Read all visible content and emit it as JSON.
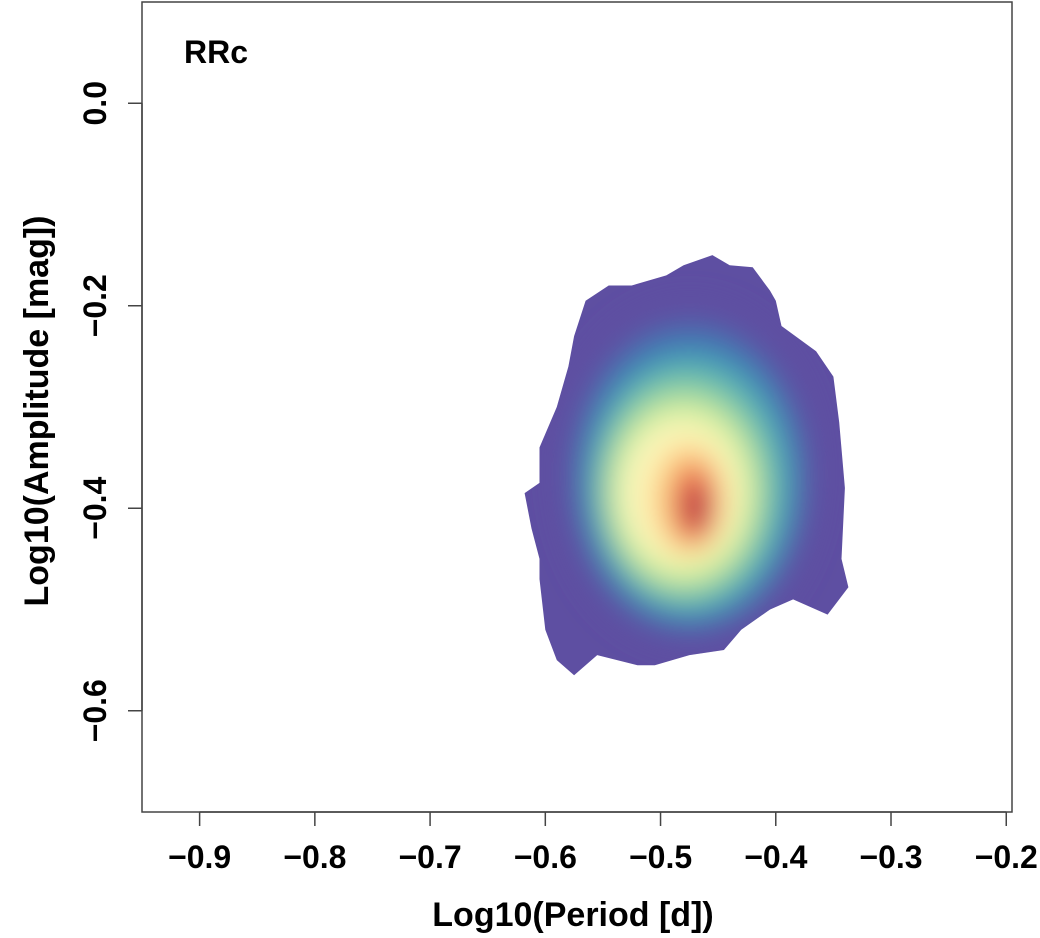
{
  "chart_data": {
    "type": "heatmap",
    "subtype": "2d-density",
    "title": "RRc",
    "xlabel": "Log10(Period [d])",
    "ylabel": "Log10(Amplitude [mag])",
    "xlim": [
      -0.95,
      -0.195
    ],
    "ylim": [
      -0.7,
      0.1
    ],
    "x_ticks": [
      -0.9,
      -0.8,
      -0.7,
      -0.6,
      -0.5,
      -0.4,
      -0.3,
      -0.2
    ],
    "x_tick_labels": [
      "−0.9",
      "−0.8",
      "−0.7",
      "−0.6",
      "−0.5",
      "−0.4",
      "−0.3",
      "−0.2"
    ],
    "y_ticks": [
      0.0,
      -0.2,
      -0.4,
      -0.6
    ],
    "y_tick_labels": [
      "0.0",
      "−0.2",
      "−0.4",
      "−0.6"
    ],
    "grid": false,
    "colormap": [
      "#5e4fa2",
      "#3288bd",
      "#66c2a5",
      "#abdda4",
      "#e6f598",
      "#ffffbf",
      "#fee08b",
      "#fdae61",
      "#f46d43",
      "#d53e4f",
      "#9e0142"
    ],
    "density_peak": {
      "x": -0.47,
      "y": -0.4
    },
    "density_outline": [
      [
        -0.575,
        -0.565
      ],
      [
        -0.555,
        -0.545
      ],
      [
        -0.52,
        -0.555
      ],
      [
        -0.505,
        -0.555
      ],
      [
        -0.475,
        -0.545
      ],
      [
        -0.445,
        -0.54
      ],
      [
        -0.43,
        -0.52
      ],
      [
        -0.405,
        -0.5
      ],
      [
        -0.385,
        -0.49
      ],
      [
        -0.355,
        -0.505
      ],
      [
        -0.337,
        -0.478
      ],
      [
        -0.343,
        -0.45
      ],
      [
        -0.34,
        -0.38
      ],
      [
        -0.345,
        -0.315
      ],
      [
        -0.35,
        -0.27
      ],
      [
        -0.365,
        -0.245
      ],
      [
        -0.395,
        -0.22
      ],
      [
        -0.4,
        -0.195
      ],
      [
        -0.405,
        -0.185
      ],
      [
        -0.42,
        -0.162
      ],
      [
        -0.44,
        -0.16
      ],
      [
        -0.455,
        -0.15
      ],
      [
        -0.48,
        -0.16
      ],
      [
        -0.495,
        -0.17
      ],
      [
        -0.525,
        -0.18
      ],
      [
        -0.545,
        -0.18
      ],
      [
        -0.565,
        -0.195
      ],
      [
        -0.575,
        -0.23
      ],
      [
        -0.58,
        -0.26
      ],
      [
        -0.59,
        -0.3
      ],
      [
        -0.605,
        -0.34
      ],
      [
        -0.605,
        -0.375
      ],
      [
        -0.618,
        -0.385
      ],
      [
        -0.612,
        -0.42
      ],
      [
        -0.605,
        -0.45
      ],
      [
        -0.605,
        -0.47
      ],
      [
        -0.6,
        -0.52
      ],
      [
        -0.59,
        -0.55
      ]
    ],
    "density_levels": [
      {
        "center": [
          -0.475,
          -0.365
        ],
        "rx": 0.115,
        "ry": 0.17,
        "color": "#5e4fa2"
      },
      {
        "center": [
          -0.475,
          -0.37
        ],
        "rx": 0.1,
        "ry": 0.15,
        "color": "#3f73b4"
      },
      {
        "center": [
          -0.475,
          -0.375
        ],
        "rx": 0.088,
        "ry": 0.13,
        "color": "#4ea6b6"
      },
      {
        "center": [
          -0.478,
          -0.38
        ],
        "rx": 0.076,
        "ry": 0.112,
        "color": "#80cca5"
      },
      {
        "center": [
          -0.48,
          -0.383
        ],
        "rx": 0.066,
        "ry": 0.096,
        "color": "#bde4a0"
      },
      {
        "center": [
          -0.48,
          -0.385
        ],
        "rx": 0.058,
        "ry": 0.082,
        "color": "#e9f5a3"
      },
      {
        "center": [
          -0.482,
          -0.385
        ],
        "rx": 0.05,
        "ry": 0.068,
        "color": "#fbf8c0"
      },
      {
        "center": [
          -0.478,
          -0.39
        ],
        "rx": 0.036,
        "ry": 0.058,
        "color": "#fde6a0"
      },
      {
        "center": [
          -0.474,
          -0.392
        ],
        "rx": 0.027,
        "ry": 0.05,
        "color": "#fdc47a"
      },
      {
        "center": [
          -0.471,
          -0.395
        ],
        "rx": 0.02,
        "ry": 0.042,
        "color": "#f58c58"
      },
      {
        "center": [
          -0.47,
          -0.398
        ],
        "rx": 0.014,
        "ry": 0.032,
        "color": "#d9474c"
      },
      {
        "center": [
          -0.469,
          -0.4
        ],
        "rx": 0.008,
        "ry": 0.02,
        "color": "#a3123f"
      }
    ]
  }
}
